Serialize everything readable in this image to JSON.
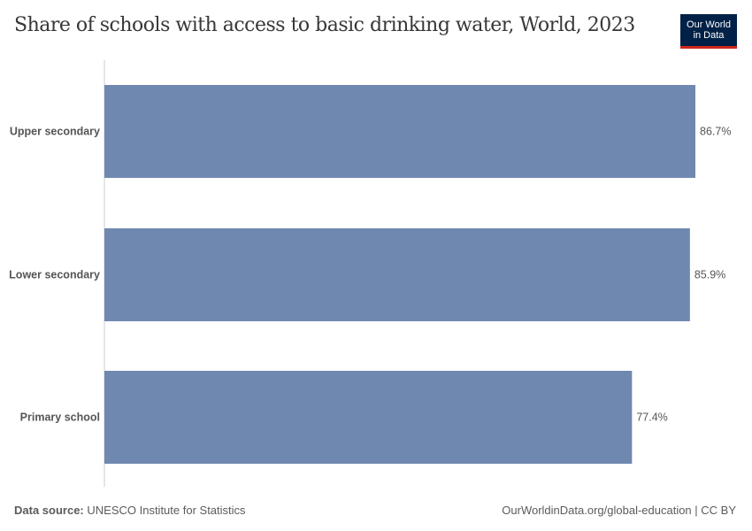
{
  "title": "Share of schools with access to basic drinking water, World, 2023",
  "logo": {
    "line1": "Our World",
    "line2": "in Data"
  },
  "chart_data": {
    "type": "bar",
    "orientation": "horizontal",
    "categories": [
      "Upper secondary",
      "Lower secondary",
      "Primary school"
    ],
    "values": [
      86.7,
      85.9,
      77.4
    ],
    "labels": [
      "86.7%",
      "85.9%",
      "77.4%"
    ],
    "unit": "%",
    "color": "#6f88b0",
    "grid": false
  },
  "footer": {
    "source_label": "Data source:",
    "source": "UNESCO Institute for Statistics",
    "credit": "OurWorldinData.org/global-education | CC BY"
  }
}
